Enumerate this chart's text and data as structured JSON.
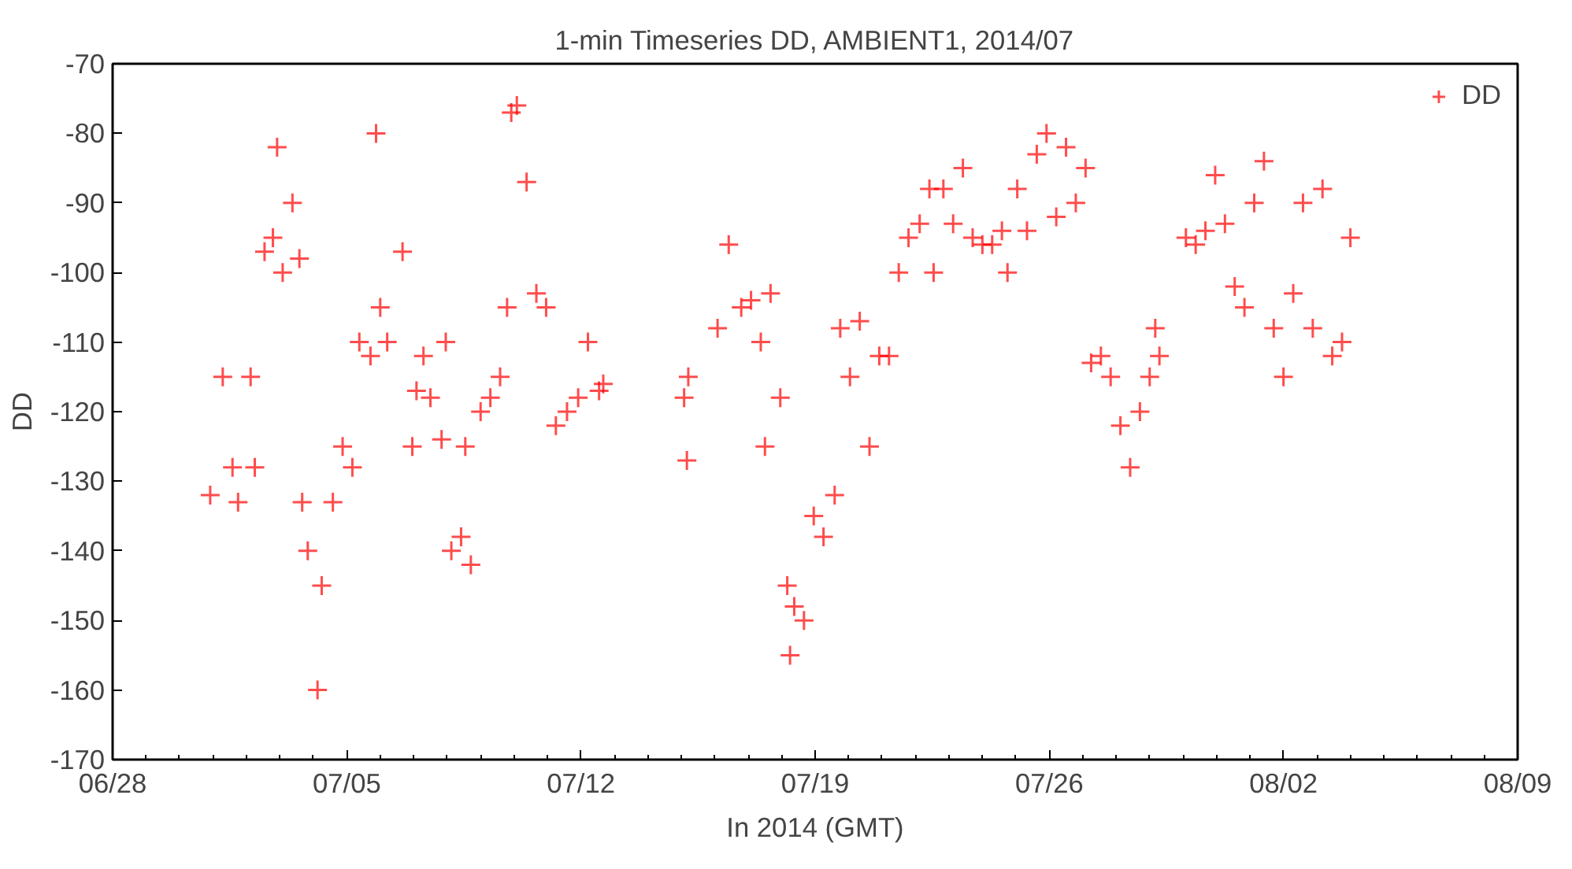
{
  "chart_data": {
    "type": "scatter",
    "title": "1-min Timeseries DD, AMBIENT1, 2014/07",
    "xlabel": "In 2014 (GMT)",
    "ylabel": "DD",
    "xlim": [
      "2014-06-28",
      "2014-08-09"
    ],
    "xticks": [
      {
        "value": "2014-06-28",
        "label": "06/28"
      },
      {
        "value": "2014-07-05",
        "label": "07/05"
      },
      {
        "value": "2014-07-12",
        "label": "07/12"
      },
      {
        "value": "2014-07-19",
        "label": "07/19"
      },
      {
        "value": "2014-07-26",
        "label": "07/26"
      },
      {
        "value": "2014-08-02",
        "label": "08/02"
      },
      {
        "value": "2014-08-09",
        "label": "08/09"
      }
    ],
    "ylim": [
      -170,
      -70
    ],
    "yticks": [
      -170,
      -160,
      -150,
      -140,
      -130,
      -120,
      -110,
      -100,
      -90,
      -80,
      -70
    ],
    "grid": false,
    "legend": "top right",
    "marker": "cross",
    "series": [
      {
        "name": "DD",
        "color": "#ff0000",
        "x": [
          "2014-06-30T22:00",
          "2014-07-01T07:00",
          "2014-07-01T14:00",
          "2014-07-01T18:00",
          "2014-07-02T03:00",
          "2014-07-02T06:00",
          "2014-07-02T13:00",
          "2014-07-02T19:00",
          "2014-07-02T22:00",
          "2014-07-03T02:00",
          "2014-07-03T09:00",
          "2014-07-03T14:00",
          "2014-07-03T16:00",
          "2014-07-03T20:00",
          "2014-07-04T03:00",
          "2014-07-04T06:00",
          "2014-07-04T14:00",
          "2014-07-04T21:00",
          "2014-07-05T04:00",
          "2014-07-05T09:00",
          "2014-07-05T17:00",
          "2014-07-05T21:00",
          "2014-07-06T00:00",
          "2014-07-06T05:00",
          "2014-07-06T16:00",
          "2014-07-06T23:00",
          "2014-07-07T02:00",
          "2014-07-07T07:00",
          "2014-07-07T12:00",
          "2014-07-07T20:00",
          "2014-07-07T23:00",
          "2014-07-08T03:00",
          "2014-07-08T10:00",
          "2014-07-08T13:00",
          "2014-07-08T17:00",
          "2014-07-09T00:00",
          "2014-07-09T07:00",
          "2014-07-09T14:00",
          "2014-07-09T19:00",
          "2014-07-09T22:00",
          "2014-07-10T02:00",
          "2014-07-10T09:00",
          "2014-07-10T16:00",
          "2014-07-10T23:00",
          "2014-07-11T06:00",
          "2014-07-11T14:00",
          "2014-07-11T22:00",
          "2014-07-12T05:00",
          "2014-07-12T13:00",
          "2014-07-12T16:00",
          "2014-07-15T02:00",
          "2014-07-15T04:00",
          "2014-07-15T05:00",
          "2014-07-16T02:00",
          "2014-07-16T10:00",
          "2014-07-16T19:00",
          "2014-07-17T02:00",
          "2014-07-17T09:00",
          "2014-07-17T12:00",
          "2014-07-17T16:00",
          "2014-07-17T23:00",
          "2014-07-18T04:00",
          "2014-07-18T06:00",
          "2014-07-18T09:00",
          "2014-07-18T16:00",
          "2014-07-18T23:00",
          "2014-07-19T06:00",
          "2014-07-19T14:00",
          "2014-07-19T18:00",
          "2014-07-20T01:00",
          "2014-07-20T08:00",
          "2014-07-20T15:00",
          "2014-07-20T22:00",
          "2014-07-21T05:00",
          "2014-07-21T12:00",
          "2014-07-21T19:00",
          "2014-07-22T03:00",
          "2014-07-22T10:00",
          "2014-07-22T13:00",
          "2014-07-22T20:00",
          "2014-07-23T03:00",
          "2014-07-23T10:00",
          "2014-07-23T17:00",
          "2014-07-24T00:00",
          "2014-07-24T07:00",
          "2014-07-24T14:00",
          "2014-07-24T18:00",
          "2014-07-25T01:00",
          "2014-07-25T08:00",
          "2014-07-25T15:00",
          "2014-07-25T22:00",
          "2014-07-26T05:00",
          "2014-07-26T12:00",
          "2014-07-26T19:00",
          "2014-07-27T02:00",
          "2014-07-27T06:00",
          "2014-07-27T13:00",
          "2014-07-27T20:00",
          "2014-07-28T03:00",
          "2014-07-28T10:00",
          "2014-07-28T17:00",
          "2014-07-29T00:00",
          "2014-07-29T04:00",
          "2014-07-29T07:00",
          "2014-07-30T02:00",
          "2014-07-30T09:00",
          "2014-07-30T16:00",
          "2014-07-30T23:00",
          "2014-07-31T06:00",
          "2014-07-31T13:00",
          "2014-07-31T20:00",
          "2014-08-01T03:00",
          "2014-08-01T10:00",
          "2014-08-01T17:00",
          "2014-08-02T00:00",
          "2014-08-02T07:00",
          "2014-08-02T14:00",
          "2014-08-02T21:00",
          "2014-08-03T04:00",
          "2014-08-03T11:00",
          "2014-08-03T18:00",
          "2014-08-04T00:00"
        ],
        "values": [
          -132,
          -115,
          -128,
          -133,
          -115,
          -128,
          -97,
          -95,
          -82,
          -100,
          -90,
          -98,
          -133,
          -140,
          -160,
          -145,
          -133,
          -125,
          -128,
          -110,
          -112,
          -80,
          -105,
          -110,
          -97,
          -125,
          -117,
          -112,
          -118,
          -124,
          -110,
          -140,
          -138,
          -125,
          -142,
          -120,
          -118,
          -115,
          -105,
          -77,
          -76,
          -87,
          -103,
          -105,
          -122,
          -120,
          -118,
          -110,
          -117,
          -116,
          -118,
          -127,
          -115,
          -108,
          -96,
          -105,
          -104,
          -110,
          -125,
          -103,
          -118,
          -145,
          -155,
          -148,
          -150,
          -135,
          -138,
          -132,
          -108,
          -115,
          -107,
          -125,
          -112,
          -112,
          -100,
          -95,
          -93,
          -88,
          -100,
          -88,
          -93,
          -85,
          -95,
          -96,
          -96,
          -94,
          -100,
          -88,
          -94,
          -83,
          -80,
          -92,
          -82,
          -90,
          -85,
          -113,
          -112,
          -115,
          -122,
          -128,
          -120,
          -115,
          -108,
          -112,
          -95,
          -96,
          -94,
          -86,
          -93,
          -102,
          -105,
          -90,
          -84,
          -108,
          -115,
          -103,
          -90,
          -108,
          -88,
          -112,
          -110,
          -95
        ]
      }
    ]
  }
}
